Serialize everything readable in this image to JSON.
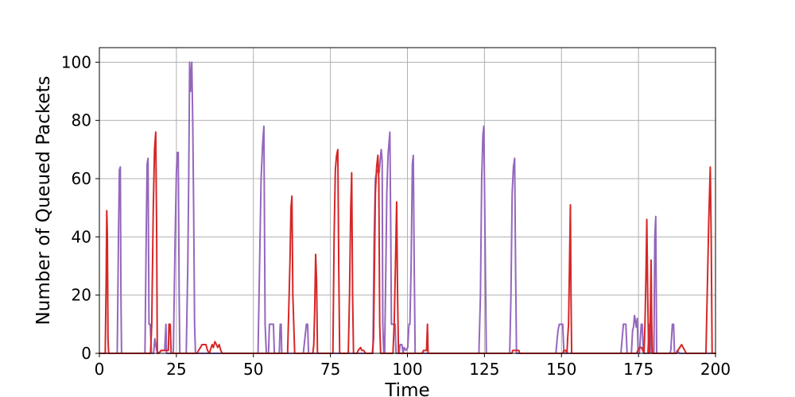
{
  "chart_data": {
    "type": "line",
    "title": "",
    "xlabel": "Time",
    "ylabel": "Number of Queued Packets",
    "xlim": [
      0,
      200
    ],
    "ylim": [
      0,
      105
    ],
    "xticks": [
      0,
      25,
      50,
      75,
      100,
      125,
      150,
      175,
      200
    ],
    "yticks": [
      0,
      20,
      40,
      60,
      80,
      100
    ],
    "grid": true,
    "legend": "none",
    "series": [
      {
        "color": "#9467bd",
        "style": "solid",
        "points": [
          [
            0,
            0
          ],
          [
            5.8,
            0
          ],
          [
            6.2,
            40
          ],
          [
            6.5,
            63
          ],
          [
            6.8,
            64
          ],
          [
            7.0,
            20
          ],
          [
            7.2,
            0
          ],
          [
            14.8,
            0
          ],
          [
            15.2,
            40
          ],
          [
            15.5,
            65
          ],
          [
            15.8,
            67
          ],
          [
            16.1,
            10
          ],
          [
            16.5,
            10
          ],
          [
            16.9,
            0
          ],
          [
            17.6,
            0
          ],
          [
            18.0,
            5
          ],
          [
            18.6,
            1
          ],
          [
            19.2,
            0
          ],
          [
            20.2,
            1
          ],
          [
            21.2,
            1
          ],
          [
            21.6,
            10
          ],
          [
            21.8,
            0
          ],
          [
            24.0,
            0
          ],
          [
            24.6,
            40
          ],
          [
            25.0,
            62
          ],
          [
            25.3,
            69
          ],
          [
            25.6,
            69
          ],
          [
            25.9,
            20
          ],
          [
            26.1,
            0
          ],
          [
            28.2,
            0
          ],
          [
            28.7,
            30
          ],
          [
            29.0,
            60
          ],
          [
            29.3,
            100
          ],
          [
            29.6,
            90
          ],
          [
            30.0,
            100
          ],
          [
            30.3,
            80
          ],
          [
            30.6,
            50
          ],
          [
            30.9,
            10
          ],
          [
            31.2,
            0
          ],
          [
            51.5,
            0
          ],
          [
            52.0,
            30
          ],
          [
            52.5,
            60
          ],
          [
            53.0,
            72
          ],
          [
            53.4,
            78
          ],
          [
            53.8,
            10
          ],
          [
            54.2,
            0
          ],
          [
            54.9,
            0
          ],
          [
            55.2,
            10
          ],
          [
            56.5,
            10
          ],
          [
            56.8,
            0
          ],
          [
            58.4,
            0
          ],
          [
            58.7,
            10
          ],
          [
            59.0,
            10
          ],
          [
            59.2,
            0
          ],
          [
            66.2,
            0
          ],
          [
            66.7,
            5
          ],
          [
            67.2,
            10
          ],
          [
            67.6,
            10
          ],
          [
            67.9,
            0
          ],
          [
            88.8,
            0
          ],
          [
            89.2,
            40
          ],
          [
            89.6,
            60
          ],
          [
            90.0,
            62
          ],
          [
            90.4,
            63
          ],
          [
            90.8,
            62
          ],
          [
            91.2,
            67
          ],
          [
            91.5,
            70
          ],
          [
            91.8,
            66
          ],
          [
            92.0,
            10
          ],
          [
            92.3,
            0
          ],
          [
            92.6,
            0
          ],
          [
            93.0,
            30
          ],
          [
            93.3,
            55
          ],
          [
            93.7,
            68
          ],
          [
            94.0,
            72
          ],
          [
            94.3,
            76
          ],
          [
            94.6,
            40
          ],
          [
            94.8,
            10
          ],
          [
            95.3,
            10
          ],
          [
            96.0,
            10
          ],
          [
            96.3,
            0
          ],
          [
            97.3,
            0
          ],
          [
            97.6,
            3
          ],
          [
            98.2,
            3
          ],
          [
            98.6,
            0
          ],
          [
            98.9,
            2
          ],
          [
            99.5,
            1
          ],
          [
            100.1,
            2
          ],
          [
            100.5,
            10
          ],
          [
            100.8,
            10
          ],
          [
            101.2,
            30
          ],
          [
            101.6,
            65
          ],
          [
            101.9,
            68
          ],
          [
            102.2,
            30
          ],
          [
            102.5,
            0
          ],
          [
            123.2,
            0
          ],
          [
            123.7,
            20
          ],
          [
            124.1,
            60
          ],
          [
            124.5,
            75
          ],
          [
            124.8,
            78
          ],
          [
            125.2,
            40
          ],
          [
            125.6,
            0
          ],
          [
            133.2,
            0
          ],
          [
            133.6,
            20
          ],
          [
            134.0,
            55
          ],
          [
            134.4,
            64
          ],
          [
            134.8,
            67
          ],
          [
            135.1,
            30
          ],
          [
            135.4,
            0
          ],
          [
            148.2,
            0
          ],
          [
            148.6,
            5
          ],
          [
            148.9,
            8
          ],
          [
            149.3,
            10
          ],
          [
            149.8,
            10
          ],
          [
            150.4,
            10
          ],
          [
            150.8,
            0
          ],
          [
            169.3,
            0
          ],
          [
            169.7,
            5
          ],
          [
            170.1,
            10
          ],
          [
            170.6,
            10
          ],
          [
            170.9,
            10
          ],
          [
            171.3,
            0
          ],
          [
            172.7,
            0
          ],
          [
            173.1,
            8
          ],
          [
            173.4,
            9
          ],
          [
            173.7,
            13
          ],
          [
            174.0,
            11
          ],
          [
            174.3,
            9
          ],
          [
            174.6,
            12
          ],
          [
            174.9,
            0
          ],
          [
            175.3,
            0
          ],
          [
            175.6,
            5
          ],
          [
            175.9,
            10
          ],
          [
            176.2,
            10
          ],
          [
            176.6,
            0
          ],
          [
            178.0,
            0
          ],
          [
            178.3,
            5
          ],
          [
            178.6,
            10
          ],
          [
            178.9,
            10
          ],
          [
            179.2,
            0
          ],
          [
            180.0,
            0
          ],
          [
            180.3,
            40
          ],
          [
            180.6,
            47
          ],
          [
            180.9,
            0
          ],
          [
            185.2,
            0
          ],
          [
            185.5,
            1
          ],
          [
            186.0,
            10
          ],
          [
            186.4,
            10
          ],
          [
            186.7,
            0
          ],
          [
            187.2,
            0
          ],
          [
            187.6,
            1
          ],
          [
            188.3,
            0
          ],
          [
            200,
            0
          ]
        ]
      },
      {
        "color": "#d62728",
        "style": "solid",
        "points": [
          [
            0,
            0
          ],
          [
            1.9,
            0
          ],
          [
            2.2,
            25
          ],
          [
            2.4,
            49
          ],
          [
            2.6,
            40
          ],
          [
            2.8,
            5
          ],
          [
            3.0,
            0
          ],
          [
            16.6,
            0
          ],
          [
            17.0,
            10
          ],
          [
            17.5,
            50
          ],
          [
            17.9,
            70
          ],
          [
            18.3,
            76
          ],
          [
            18.6,
            40
          ],
          [
            18.8,
            0
          ],
          [
            19.3,
            0
          ],
          [
            20.0,
            1
          ],
          [
            22.4,
            1
          ],
          [
            22.6,
            10
          ],
          [
            23.0,
            10
          ],
          [
            23.3,
            0
          ],
          [
            31.7,
            0
          ],
          [
            32.2,
            1
          ],
          [
            32.8,
            2
          ],
          [
            33.3,
            3
          ],
          [
            34.0,
            3
          ],
          [
            34.6,
            3
          ],
          [
            35.1,
            1
          ],
          [
            35.7,
            0
          ],
          [
            36.0,
            1
          ],
          [
            36.6,
            3
          ],
          [
            37.0,
            2
          ],
          [
            37.5,
            4
          ],
          [
            38.0,
            3
          ],
          [
            38.4,
            2
          ],
          [
            38.9,
            3
          ],
          [
            39.4,
            1
          ],
          [
            39.9,
            0
          ],
          [
            61.1,
            0
          ],
          [
            61.6,
            20
          ],
          [
            61.9,
            33
          ],
          [
            62.2,
            50
          ],
          [
            62.5,
            54
          ],
          [
            62.8,
            20
          ],
          [
            63.1,
            10
          ],
          [
            63.4,
            0
          ],
          [
            69.3,
            0
          ],
          [
            69.6,
            3
          ],
          [
            69.9,
            15
          ],
          [
            70.2,
            34
          ],
          [
            70.5,
            25
          ],
          [
            70.8,
            0
          ],
          [
            75.8,
            0
          ],
          [
            76.2,
            40
          ],
          [
            76.6,
            63
          ],
          [
            77.0,
            68
          ],
          [
            77.4,
            70
          ],
          [
            77.7,
            30
          ],
          [
            78.0,
            0
          ],
          [
            80.8,
            0
          ],
          [
            81.2,
            20
          ],
          [
            81.6,
            50
          ],
          [
            81.9,
            62
          ],
          [
            82.2,
            20
          ],
          [
            82.5,
            0
          ],
          [
            83.6,
            0
          ],
          [
            84.0,
            1
          ],
          [
            84.8,
            2
          ],
          [
            85.2,
            1
          ],
          [
            85.8,
            1
          ],
          [
            86.4,
            0
          ],
          [
            88.6,
            0
          ],
          [
            89.0,
            5
          ],
          [
            89.6,
            55
          ],
          [
            90.0,
            64
          ],
          [
            90.4,
            68
          ],
          [
            90.7,
            60
          ],
          [
            91.0,
            10
          ],
          [
            91.3,
            0
          ],
          [
            95.3,
            0
          ],
          [
            95.7,
            10
          ],
          [
            96.1,
            30
          ],
          [
            96.5,
            52
          ],
          [
            96.8,
            20
          ],
          [
            97.1,
            0
          ],
          [
            104.8,
            0
          ],
          [
            105.2,
            1
          ],
          [
            106.2,
            1
          ],
          [
            106.5,
            10
          ],
          [
            106.7,
            0
          ],
          [
            133.9,
            0
          ],
          [
            134.2,
            1
          ],
          [
            136.2,
            1
          ],
          [
            136.4,
            0
          ],
          [
            150.4,
            0
          ],
          [
            150.8,
            1
          ],
          [
            151.4,
            1
          ],
          [
            151.8,
            0
          ],
          [
            152.0,
            5
          ],
          [
            152.3,
            10
          ],
          [
            152.6,
            30
          ],
          [
            152.9,
            51
          ],
          [
            153.1,
            20
          ],
          [
            153.3,
            0
          ],
          [
            174.4,
            0
          ],
          [
            174.8,
            1
          ],
          [
            175.4,
            2
          ],
          [
            176.0,
            2
          ],
          [
            176.4,
            1
          ],
          [
            176.8,
            0
          ],
          [
            176.8,
            0
          ],
          [
            177.1,
            10
          ],
          [
            177.4,
            25
          ],
          [
            177.7,
            46
          ],
          [
            178.0,
            20
          ],
          [
            178.3,
            0
          ],
          [
            178.6,
            0
          ],
          [
            178.8,
            10
          ],
          [
            179.1,
            32
          ],
          [
            179.3,
            10
          ],
          [
            179.5,
            0
          ],
          [
            187.4,
            0
          ],
          [
            187.8,
            1
          ],
          [
            188.4,
            2
          ],
          [
            189.0,
            3
          ],
          [
            189.5,
            2
          ],
          [
            190.0,
            1
          ],
          [
            190.5,
            0
          ],
          [
            196.9,
            0
          ],
          [
            197.3,
            20
          ],
          [
            197.8,
            45
          ],
          [
            198.3,
            64
          ],
          [
            198.6,
            40
          ],
          [
            198.9,
            0
          ],
          [
            200,
            0
          ]
        ]
      }
    ]
  }
}
